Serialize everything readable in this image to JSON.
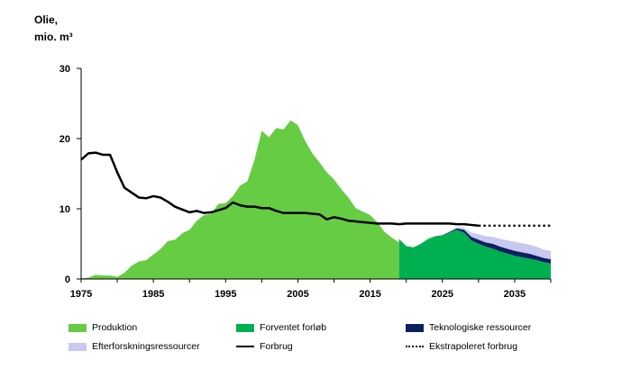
{
  "chart_data": {
    "type": "area",
    "ylabel_line1": "Olie,",
    "ylabel_line2": "mio. m³",
    "xlim": [
      1975,
      2040
    ],
    "ylim": [
      0,
      30
    ],
    "x_ticks": [
      "1975",
      "1985",
      "1995",
      "2005",
      "2015",
      "2025",
      "2035"
    ],
    "y_ticks": [
      "0",
      "10",
      "20",
      "30"
    ],
    "grid": false,
    "legend_position": "bottom",
    "series": [
      {
        "name": "Produktion",
        "color": "#66cc44",
        "x": [
          1975,
          1976,
          1977,
          1978,
          1979,
          1980,
          1981,
          1982,
          1983,
          1984,
          1985,
          1986,
          1987,
          1988,
          1989,
          1990,
          1991,
          1992,
          1993,
          1994,
          1995,
          1996,
          1997,
          1998,
          1999,
          2000,
          2001,
          2002,
          2003,
          2004,
          2005,
          2006,
          2007,
          2008,
          2009,
          2010,
          2011,
          2012,
          2013,
          2014,
          2015,
          2016,
          2017,
          2018,
          2019
        ],
        "values": [
          0.1,
          0.2,
          0.6,
          0.5,
          0.5,
          0.3,
          0.9,
          1.9,
          2.5,
          2.7,
          3.5,
          4.3,
          5.4,
          5.6,
          6.5,
          7.0,
          8.3,
          9.1,
          9.3,
          10.7,
          10.8,
          11.8,
          13.3,
          13.9,
          17.0,
          21.1,
          20.2,
          21.5,
          21.3,
          22.6,
          21.9,
          19.7,
          17.9,
          16.6,
          15.2,
          14.2,
          12.8,
          11.6,
          10.1,
          9.6,
          9.1,
          8.1,
          6.7,
          5.9,
          5.2
        ]
      },
      {
        "name": "Forventet forløb",
        "color": "#00b050",
        "x": [
          2019,
          2020,
          2021,
          2022,
          2023,
          2024,
          2025,
          2026,
          2027,
          2028,
          2029,
          2030,
          2031,
          2032,
          2033,
          2034,
          2035,
          2036,
          2037,
          2038,
          2039,
          2040
        ],
        "values": [
          5.7,
          4.7,
          4.5,
          5.0,
          5.7,
          6.1,
          6.2,
          6.6,
          7.0,
          6.6,
          5.5,
          5.0,
          4.6,
          4.3,
          3.9,
          3.6,
          3.3,
          3.1,
          2.9,
          2.7,
          2.4,
          2.2
        ]
      },
      {
        "name": "Teknologiske ressourcer",
        "color": "#0b2060",
        "x": [
          2019,
          2020,
          2021,
          2022,
          2023,
          2024,
          2025,
          2026,
          2027,
          2028,
          2029,
          2030,
          2031,
          2032,
          2033,
          2034,
          2035,
          2036,
          2037,
          2038,
          2039,
          2040
        ],
        "values": [
          0,
          0,
          0,
          0,
          0,
          0,
          0.05,
          0.1,
          0.2,
          0.4,
          0.5,
          0.6,
          0.6,
          0.7,
          0.7,
          0.7,
          0.7,
          0.7,
          0.7,
          0.6,
          0.6,
          0.6
        ]
      },
      {
        "name": "Efterforskningsressourcer",
        "color": "#c8c8f0",
        "x": [
          2019,
          2020,
          2021,
          2022,
          2023,
          2024,
          2025,
          2026,
          2027,
          2028,
          2029,
          2030,
          2031,
          2032,
          2033,
          2034,
          2035,
          2036,
          2037,
          2038,
          2039,
          2040
        ],
        "values": [
          0,
          0,
          0,
          0,
          0,
          0,
          0,
          0.1,
          0.2,
          0.3,
          0.6,
          0.8,
          0.9,
          1.0,
          1.1,
          1.2,
          1.3,
          1.3,
          1.3,
          1.3,
          1.2,
          1.2
        ]
      },
      {
        "name": "Forbrug",
        "color": "#000000",
        "x": [
          1975,
          1976,
          1977,
          1978,
          1979,
          1980,
          1981,
          1982,
          1983,
          1984,
          1985,
          1986,
          1987,
          1988,
          1989,
          1990,
          1991,
          1992,
          1993,
          1994,
          1995,
          1996,
          1997,
          1998,
          1999,
          2000,
          2001,
          2002,
          2003,
          2004,
          2005,
          2006,
          2007,
          2008,
          2009,
          2010,
          2011,
          2012,
          2013,
          2014,
          2015,
          2016,
          2017,
          2018,
          2019,
          2020,
          2021,
          2022,
          2023,
          2024,
          2025,
          2026,
          2027,
          2028,
          2029,
          2030
        ],
        "values": [
          17.0,
          17.9,
          18.0,
          17.7,
          17.7,
          15.2,
          13.0,
          12.3,
          11.6,
          11.5,
          11.8,
          11.6,
          11.0,
          10.3,
          9.9,
          9.5,
          9.7,
          9.4,
          9.5,
          9.8,
          10.1,
          10.9,
          10.5,
          10.3,
          10.3,
          10.1,
          10.1,
          9.7,
          9.4,
          9.4,
          9.4,
          9.4,
          9.3,
          9.2,
          8.5,
          8.8,
          8.6,
          8.3,
          8.2,
          8.1,
          8.0,
          7.9,
          7.9,
          7.9,
          7.8,
          7.9,
          7.9,
          7.9,
          7.9,
          7.9,
          7.9,
          7.9,
          7.8,
          7.8,
          7.7,
          7.6
        ]
      },
      {
        "name": "Ekstrapoleret forbrug",
        "color": "#000000",
        "x": [
          2030,
          2040
        ],
        "values": [
          7.6,
          7.6
        ]
      }
    ]
  }
}
